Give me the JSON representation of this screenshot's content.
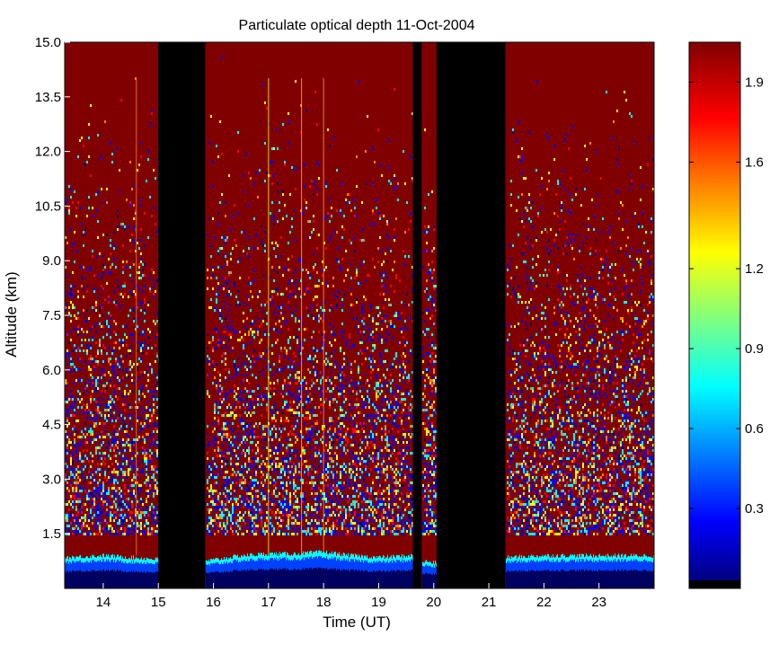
{
  "chart_data": {
    "type": "heatmap",
    "title": "Particulate optical depth  11-Oct-2004",
    "xlabel": "Time (UT)",
    "ylabel": "Altitude (km)",
    "xlim": [
      13.3,
      24.0
    ],
    "ylim": [
      0.0,
      15.0
    ],
    "x_ticks": [
      14,
      15,
      16,
      17,
      18,
      19,
      20,
      21,
      22,
      23
    ],
    "x_tick_labels": [
      "14",
      "15",
      "16",
      "17",
      "18",
      "19",
      "20",
      "21",
      "22",
      "23"
    ],
    "y_ticks": [
      1.5,
      3.0,
      4.5,
      6.0,
      7.5,
      9.0,
      10.5,
      12.0,
      13.5,
      15.0
    ],
    "y_tick_labels": [
      "1.5",
      "3.0",
      "4.5",
      "6.0",
      "7.5",
      "9.0",
      "10.5",
      "12.0",
      "13.5",
      "15.0"
    ],
    "colorbar": {
      "clim": [
        0.0,
        2.05
      ],
      "ticks": [
        0.3,
        0.6,
        0.9,
        1.2,
        1.6,
        1.9
      ],
      "tick_labels": [
        "0.3",
        "0.6",
        "0.9",
        "1.2",
        "1.6",
        "1.9"
      ],
      "colormap": "jet",
      "low_color": "#000000"
    },
    "no_data_intervals": [
      [
        15.0,
        15.85
      ],
      [
        19.62,
        19.78
      ],
      [
        20.05,
        21.3
      ]
    ],
    "boundary_layer_top_km": [
      [
        13.3,
        0.85
      ],
      [
        14.0,
        0.9
      ],
      [
        14.5,
        0.85
      ],
      [
        15.0,
        0.8
      ],
      [
        15.85,
        0.75
      ],
      [
        16.5,
        0.9
      ],
      [
        17.0,
        0.95
      ],
      [
        17.5,
        0.95
      ],
      [
        18.0,
        1.0
      ],
      [
        18.5,
        0.9
      ],
      [
        19.0,
        0.85
      ],
      [
        19.62,
        0.9
      ],
      [
        19.78,
        0.75
      ],
      [
        20.05,
        0.7
      ],
      [
        21.3,
        0.85
      ],
      [
        22.0,
        0.9
      ],
      [
        22.5,
        0.9
      ],
      [
        23.0,
        0.9
      ],
      [
        24.0,
        0.9
      ]
    ],
    "background_color": "#800000",
    "grid": false
  }
}
